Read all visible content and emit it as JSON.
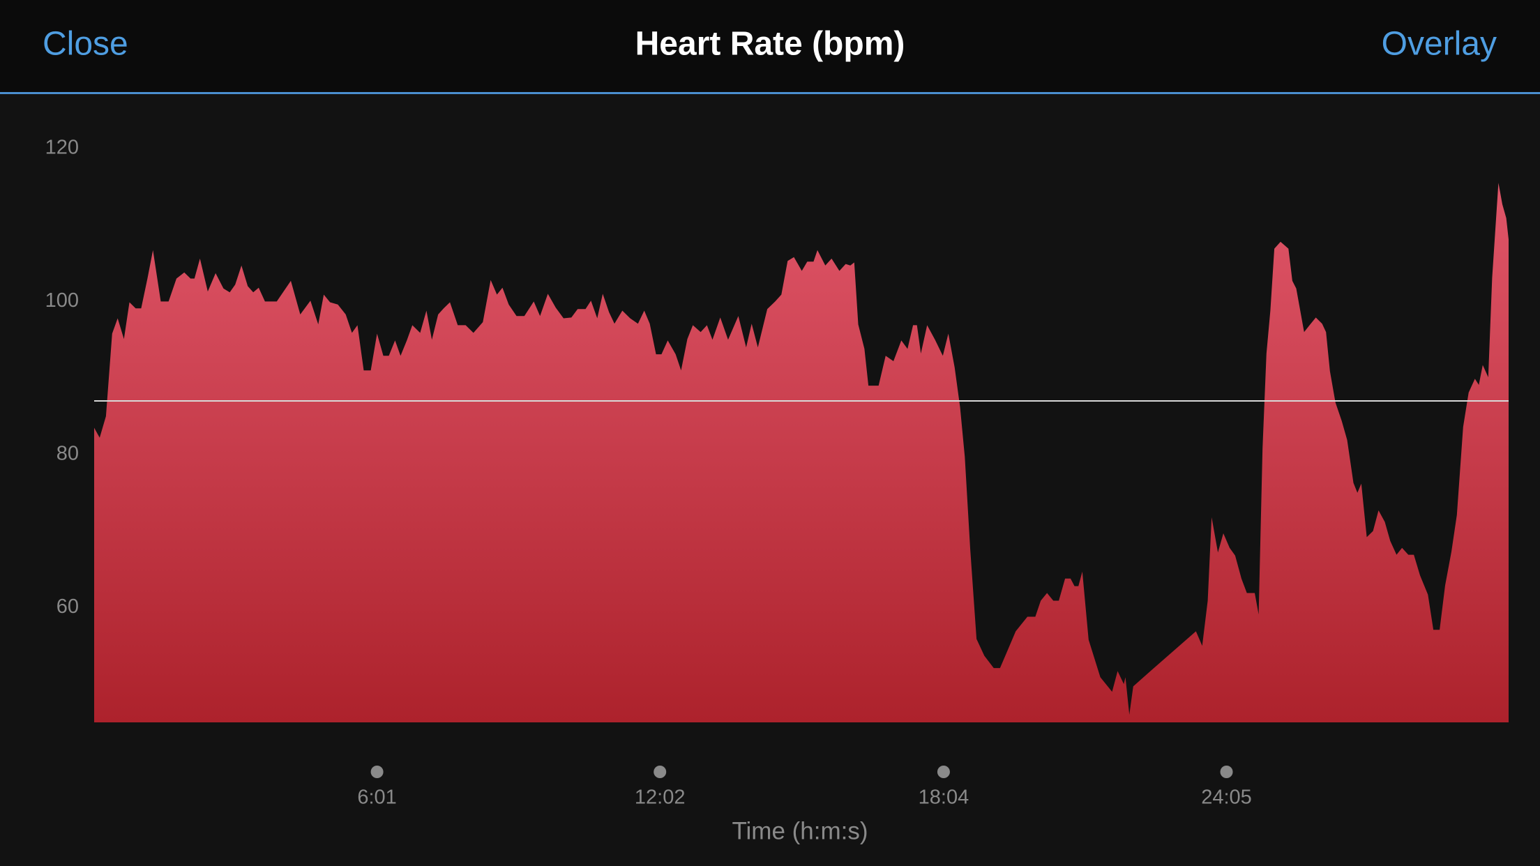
{
  "header": {
    "left": "Close",
    "right": "Overlay"
  },
  "chart_data": {
    "type": "area",
    "title": "Heart Rate (bpm)",
    "x_label": "Time (h:m:s)",
    "color_top": "#e05669",
    "color_bottom": "#ad222c",
    "xlim": [
      0,
      1805
    ],
    "ylim": [
      45,
      125
    ],
    "xticks": [
      {
        "value": 361,
        "label": "6:01"
      },
      {
        "value": 722,
        "label": "12:02"
      },
      {
        "value": 1084,
        "label": "18:04"
      },
      {
        "value": 1445,
        "label": "24:05"
      }
    ],
    "yticks": [
      60,
      80,
      100,
      120
    ],
    "grid": false,
    "reference_line": 87,
    "x": [
      0,
      7,
      15,
      23,
      30,
      38,
      45,
      53,
      60,
      68,
      75,
      85,
      95,
      105,
      115,
      123,
      128,
      135,
      145,
      155,
      165,
      173,
      180,
      188,
      196,
      203,
      210,
      218,
      233,
      251,
      263,
      276,
      286,
      293,
      301,
      311,
      321,
      329,
      336,
      344,
      353,
      361,
      369,
      376,
      384,
      391,
      399,
      406,
      416,
      424,
      431,
      439,
      446,
      454,
      464,
      474,
      484,
      496,
      506,
      514,
      521,
      529,
      539,
      549,
      561,
      569,
      579,
      589,
      599,
      609,
      617,
      627,
      634,
      642,
      649,
      657,
      664,
      674,
      684,
      694,
      702,
      709,
      717,
      724,
      732,
      742,
      749,
      757,
      764,
      774,
      782,
      789,
      799,
      809,
      822,
      832,
      839,
      847,
      859,
      869,
      877,
      885,
      893,
      903,
      910,
      918,
      923,
      933,
      941,
      951,
      959,
      965,
      970,
      975,
      983,
      988,
      1001,
      1010,
      1020,
      1030,
      1038,
      1045,
      1050,
      1055,
      1063,
      1073,
      1083,
      1090,
      1098,
      1105,
      1111,
      1118,
      1126,
      1136,
      1148,
      1156,
      1166,
      1176,
      1191,
      1201,
      1208,
      1216,
      1224,
      1231,
      1239,
      1246,
      1251,
      1256,
      1261,
      1269,
      1284,
      1299,
      1306,
      1314,
      1316,
      1321,
      1326,
      1349,
      1406,
      1414,
      1421,
      1426,
      1434,
      1441,
      1449,
      1456,
      1464,
      1471,
      1481,
      1486,
      1491,
      1496,
      1501,
      1506,
      1514,
      1524,
      1529,
      1534,
      1544,
      1551,
      1559,
      1567,
      1572,
      1577,
      1584,
      1592,
      1599,
      1607,
      1612,
      1617,
      1624,
      1632,
      1639,
      1647,
      1654,
      1662,
      1669,
      1677,
      1684,
      1692,
      1702,
      1709,
      1717,
      1724,
      1732,
      1739,
      1747,
      1754,
      1762,
      1767,
      1772,
      1779,
      1784,
      1792,
      1797,
      1802,
      1805
    ],
    "values": [
      83.5,
      82.2,
      85,
      95.8,
      97.8,
      95.1,
      99.9,
      99.1,
      99.1,
      103,
      106.7,
      100,
      100,
      103,
      103.8,
      103,
      103,
      105.6,
      101.3,
      103.7,
      101.7,
      101.2,
      102.2,
      104.7,
      102,
      101.2,
      101.8,
      100,
      100,
      102.7,
      98.3,
      100.1,
      97,
      100.9,
      99.9,
      99.6,
      98.3,
      95.9,
      96.9,
      91,
      91,
      95.8,
      92.9,
      92.9,
      94.9,
      92.9,
      94.9,
      96.9,
      95.9,
      98.8,
      95,
      98.3,
      99.1,
      99.9,
      96.9,
      96.9,
      95.9,
      97.3,
      102.8,
      100.9,
      101.8,
      99.6,
      98.1,
      98.1,
      100,
      98.1,
      101,
      99.2,
      97.8,
      97.9,
      99,
      99,
      100.1,
      97.8,
      101,
      98.6,
      97.1,
      98.8,
      97.8,
      97.1,
      98.8,
      97.1,
      93.1,
      93.1,
      94.9,
      93.1,
      91,
      95.1,
      96.9,
      96,
      96.9,
      95,
      97.9,
      95,
      98.1,
      94,
      97.1,
      94,
      99,
      100,
      100.9,
      105.3,
      105.8,
      104,
      105.2,
      105.2,
      106.7,
      104.7,
      105.6,
      104,
      104.9,
      104.7,
      105.1,
      97,
      93.8,
      89,
      89,
      92.9,
      92.2,
      94.9,
      93.8,
      96.9,
      96.9,
      93.2,
      96.9,
      95,
      92.9,
      95.8,
      91.4,
      86.2,
      79.7,
      67.6,
      55.9,
      53.7,
      52.1,
      52.1,
      54.5,
      56.9,
      58.8,
      58.8,
      60.9,
      61.9,
      60.9,
      60.9,
      63.8,
      63.8,
      62.8,
      62.8,
      64.7,
      55.8,
      50.9,
      49,
      51.7,
      50,
      50.9,
      46,
      49.7,
      51.8,
      56.9,
      55,
      60.9,
      71.8,
      67.2,
      69.7,
      67.8,
      66.8,
      63.8,
      61.9,
      61.9,
      59.1,
      80.8,
      93.2,
      98.8,
      106.9,
      107.8,
      106.9,
      102.7,
      101.7,
      96,
      96.9,
      97.9,
      97.1,
      96,
      90.9,
      86.8,
      84.4,
      81.9,
      76.3,
      75,
      76.2,
      69.2,
      70,
      72.7,
      71.2,
      68.7,
      66.9,
      67.8,
      66.9,
      66.9,
      64.2,
      61.7,
      57.1,
      57.1,
      62.9,
      67.3,
      72.1,
      83.6,
      88.1,
      89.9,
      89.1,
      91.7,
      90.1,
      103.1,
      115.5,
      112.7,
      110.9,
      108.1
    ]
  }
}
